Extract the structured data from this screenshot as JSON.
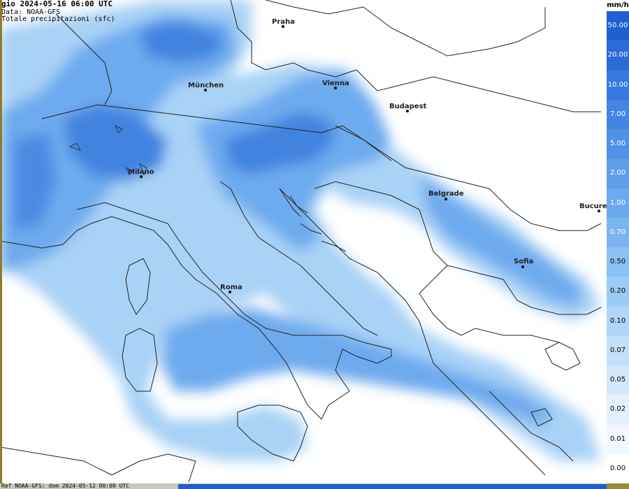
{
  "header": {
    "line1": "gio 2024-05-16 06:00 UTC",
    "line2": "Data: NOAA-GFS",
    "line3": "Totale precipitazioni (sfc)"
  },
  "footer": {
    "ref": "Ref NOAA-GFS: dom 2024-05-12 00:00 UTC"
  },
  "legend": {
    "unit": "mm/h",
    "levels": [
      {
        "label": "50.00",
        "color": "#1e5fd2",
        "text_color": "#ffffff"
      },
      {
        "label": "20.00",
        "color": "#2a6bd8",
        "text_color": "#ffffff"
      },
      {
        "label": "10.00",
        "color": "#3579de",
        "text_color": "#ffffff"
      },
      {
        "label": "7.00",
        "color": "#4286e2",
        "text_color": "#ffffff"
      },
      {
        "label": "5.00",
        "color": "#5092e6",
        "text_color": "#ffffff"
      },
      {
        "label": "2.00",
        "color": "#5e9eea",
        "text_color": "#ffffff"
      },
      {
        "label": "1.00",
        "color": "#6caaee",
        "text_color": "#ffffff"
      },
      {
        "label": "0.70",
        "color": "#7ab5f1",
        "text_color": "#ffffff"
      },
      {
        "label": "0.50",
        "color": "#8ac0f4",
        "text_color": "#000000"
      },
      {
        "label": "0.20",
        "color": "#9ccbf6",
        "text_color": "#000000"
      },
      {
        "label": "0.10",
        "color": "#afd6f8",
        "text_color": "#000000"
      },
      {
        "label": "0.07",
        "color": "#c2e0fa",
        "text_color": "#000000"
      },
      {
        "label": "0.05",
        "color": "#d3e9fb",
        "text_color": "#000000"
      },
      {
        "label": "0.02",
        "color": "#e3f1fd",
        "text_color": "#000000"
      },
      {
        "label": "0.01",
        "color": "#f0f7fe",
        "text_color": "#000000"
      },
      {
        "label": "0.00",
        "color": "#ffffff",
        "text_color": "#000000"
      }
    ]
  },
  "cities": [
    {
      "name": "Praha"
    },
    {
      "name": "München"
    },
    {
      "name": "Vienna"
    },
    {
      "name": "Budapest"
    },
    {
      "name": "Milano"
    },
    {
      "name": "Belgrade"
    },
    {
      "name": "Bucure"
    },
    {
      "name": "Sofia"
    },
    {
      "name": "Roma"
    }
  ]
}
